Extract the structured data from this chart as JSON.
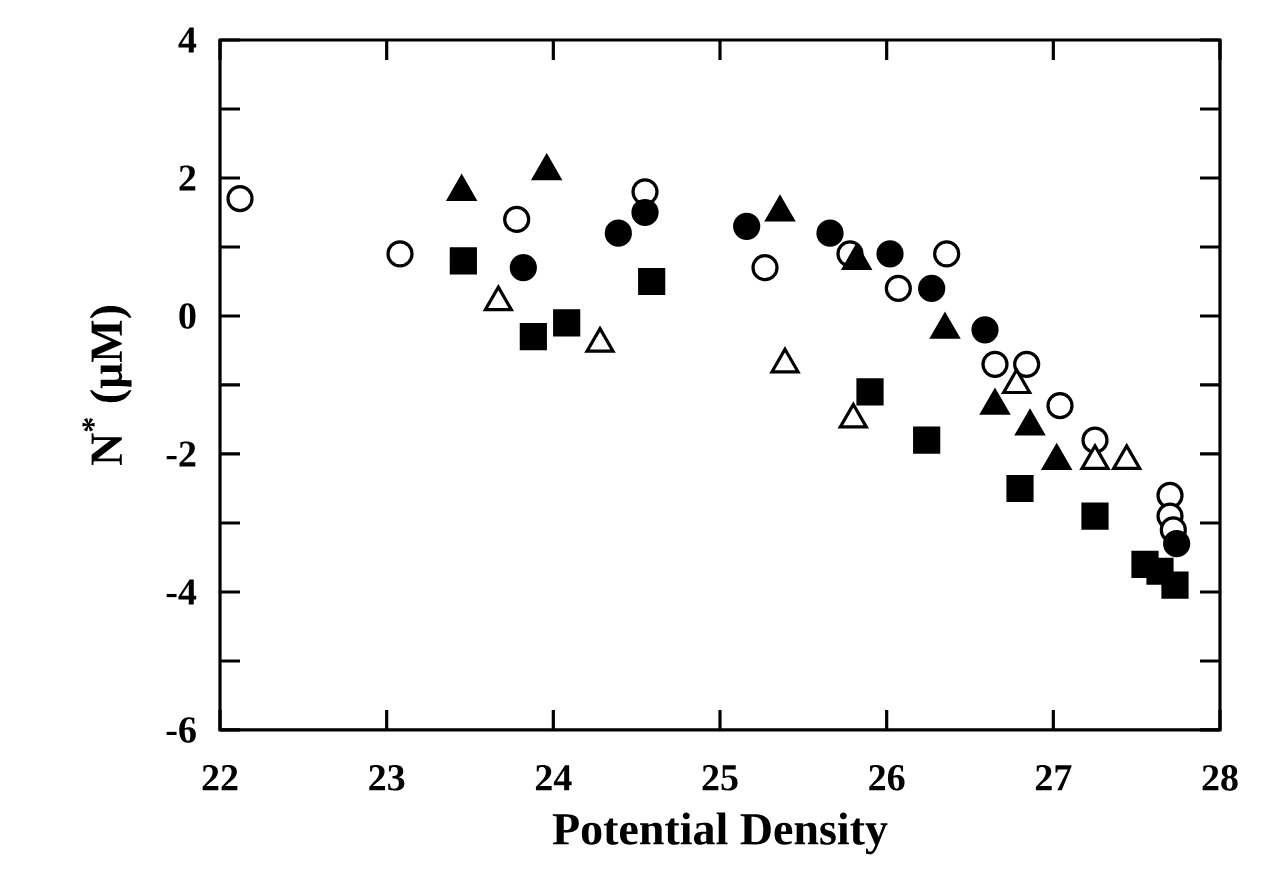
{
  "chart_data": {
    "type": "scatter",
    "xlabel": "Potential Density",
    "ylabel": "N$^{*}$ (μM)",
    "xlim": [
      22,
      28
    ],
    "ylim": [
      -6,
      4
    ],
    "xticks": [
      22,
      23,
      24,
      25,
      26,
      27,
      28
    ],
    "yticks": [
      -6,
      {
        "value": -5,
        "label": null
      },
      -4,
      {
        "value": -3,
        "label": null
      },
      -2,
      {
        "value": -1,
        "label": null
      },
      0,
      {
        "value": 1,
        "label": null
      },
      2,
      {
        "value": 3,
        "label": null
      },
      4
    ],
    "grid": false,
    "series": [
      {
        "marker": "circle",
        "color": "#ffffff",
        "x": [
          22.12,
          23.08,
          23.78,
          24.55,
          25.27,
          25.78,
          26.07,
          26.36,
          26.65,
          26.84,
          27.04,
          27.25,
          27.7,
          27.7,
          27.72
        ],
        "values": [
          1.7,
          0.9,
          1.4,
          1.8,
          0.7,
          0.9,
          0.4,
          0.9,
          -0.7,
          -0.7,
          -1.3,
          -1.8,
          -2.6,
          -2.9,
          -3.1
        ]
      },
      {
        "marker": "circle",
        "color": "#000000",
        "x": [
          23.82,
          24.39,
          24.55,
          25.16,
          25.66,
          26.02,
          26.27,
          26.59,
          27.74
        ],
        "values": [
          0.7,
          1.2,
          1.5,
          1.3,
          1.2,
          0.9,
          0.4,
          -0.2,
          -3.3
        ]
      },
      {
        "marker": "triangle",
        "color": "#000000",
        "x": [
          23.45,
          23.96,
          25.36,
          25.82,
          26.35,
          26.65,
          26.86,
          27.02
        ],
        "values": [
          1.8,
          2.1,
          1.5,
          0.8,
          -0.2,
          -1.3,
          -1.6,
          -2.1
        ]
      },
      {
        "marker": "triangle",
        "color": "#ffffff",
        "x": [
          23.67,
          24.28,
          25.39,
          25.8,
          26.78,
          27.25,
          27.44
        ],
        "values": [
          0.2,
          -0.4,
          -0.7,
          -1.5,
          -1.0,
          -2.1,
          -2.1
        ]
      },
      {
        "marker": "square",
        "color": "#000000",
        "x": [
          23.46,
          23.88,
          24.08,
          24.59,
          25.9,
          26.24,
          26.8,
          27.25,
          27.55,
          27.64,
          27.73
        ],
        "values": [
          0.8,
          -0.3,
          -0.1,
          0.5,
          -1.1,
          -1.8,
          -2.5,
          -2.9,
          -3.6,
          -3.7,
          -3.9
        ]
      }
    ]
  }
}
